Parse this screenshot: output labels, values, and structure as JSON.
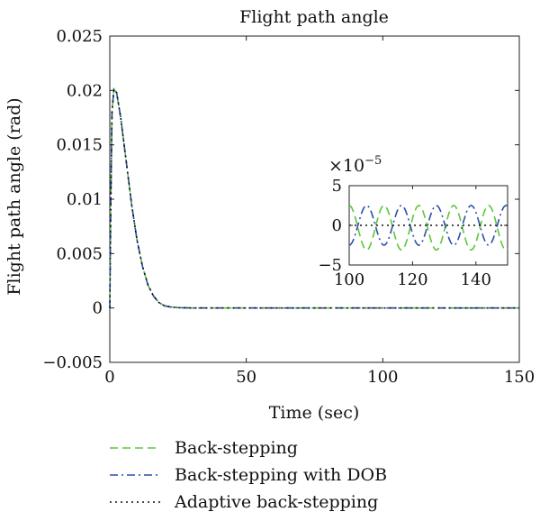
{
  "chart_data": {
    "type": "line",
    "title": "Flight path angle",
    "xlabel": "Time (sec)",
    "ylabel": "Flight path angle (rad)",
    "xlim": [
      0,
      150
    ],
    "ylim": [
      -0.005,
      0.025
    ],
    "x_ticks": [
      0,
      50,
      100,
      150
    ],
    "x_tick_labels": [
      "0",
      "50",
      "100",
      "150"
    ],
    "y_ticks": [
      -0.005,
      0,
      0.005,
      0.01,
      0.015,
      0.02,
      0.025
    ],
    "y_tick_labels": [
      "−0.005",
      "0",
      "0.005",
      "0.01",
      "0.015",
      "0.02",
      "0.025"
    ],
    "grid": false,
    "legend_position": "bottom",
    "series": [
      {
        "name": "Back-stepping",
        "color": "#5dc63a",
        "dash": "dash",
        "x": [
          0,
          0.3,
          0.8,
          1.5,
          2.5,
          4,
          6,
          8,
          10,
          12,
          14,
          16,
          18,
          20,
          22,
          25,
          30,
          40,
          150
        ],
        "y": [
          0,
          0.008,
          0.018,
          0.0201,
          0.0198,
          0.0175,
          0.0135,
          0.0095,
          0.0062,
          0.0038,
          0.0021,
          0.0011,
          0.0005,
          0.0002,
          0.0001,
          3e-05,
          0,
          0,
          0
        ]
      },
      {
        "name": "Back-stepping with DOB",
        "color": "#2f4fa8",
        "dash": "dashdot",
        "x": [
          0,
          0.3,
          0.8,
          1.5,
          2.5,
          4,
          6,
          8,
          10,
          12,
          14,
          16,
          18,
          20,
          22,
          25,
          30,
          40,
          150
        ],
        "y": [
          0,
          0.008,
          0.018,
          0.0201,
          0.0198,
          0.0175,
          0.0135,
          0.0095,
          0.0062,
          0.0038,
          0.0021,
          0.0011,
          0.0005,
          0.0002,
          0.0001,
          3e-05,
          0,
          0,
          0
        ]
      },
      {
        "name": "Adaptive back-stepping",
        "color": "#111111",
        "dash": "dot",
        "x": [
          0,
          0.3,
          0.8,
          1.5,
          2.5,
          4,
          6,
          8,
          10,
          12,
          14,
          16,
          18,
          20,
          22,
          25,
          30,
          40,
          150
        ],
        "y": [
          0,
          0.008,
          0.018,
          0.0201,
          0.0198,
          0.0175,
          0.0135,
          0.0095,
          0.0062,
          0.0038,
          0.0021,
          0.0011,
          0.0005,
          0.0002,
          0.0001,
          3e-05,
          0,
          0,
          0
        ]
      }
    ],
    "inset": {
      "xlim": [
        100,
        150
      ],
      "ylim": [
        -5,
        5
      ],
      "y_multiplier": "×10",
      "y_multiplier_exp": "−5",
      "x_ticks": [
        100,
        120,
        140
      ],
      "x_tick_labels": [
        "100",
        "120",
        "140"
      ],
      "y_ticks": [
        -5,
        0,
        5
      ],
      "y_tick_labels": [
        "−5",
        "0",
        "5"
      ],
      "series": [
        {
          "name": "Back-stepping",
          "amplitude": 2.8,
          "period": 11,
          "phase_deg": 90,
          "offset": -0.3
        },
        {
          "name": "Back-stepping with DOB",
          "amplitude": 2.5,
          "period": 11,
          "phase_deg": -90,
          "offset": 0
        },
        {
          "name": "Adaptive back-stepping",
          "amplitude": 0,
          "period": 11,
          "phase_deg": 0,
          "offset": 0
        }
      ]
    }
  }
}
